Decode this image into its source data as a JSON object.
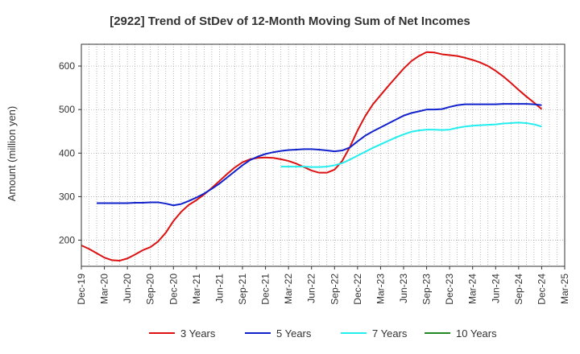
{
  "chart_data": {
    "type": "line",
    "title": "[2922]  Trend of StDev of 12-Month Moving Sum of Net Incomes",
    "ylabel": "Amount (million yen)",
    "xlabel": "",
    "ylim": [
      140,
      650
    ],
    "yticks": [
      200,
      300,
      400,
      500,
      600
    ],
    "x_tick_labels": [
      "Dec-19",
      "Mar-20",
      "Jun-20",
      "Sep-20",
      "Dec-20",
      "Mar-21",
      "Jun-21",
      "Sep-21",
      "Dec-21",
      "Mar-22",
      "Jun-22",
      "Sep-22",
      "Dec-22",
      "Mar-23",
      "Jun-23",
      "Sep-23",
      "Dec-23",
      "Mar-24",
      "Jun-24",
      "Sep-24",
      "Dec-24",
      "Mar-25"
    ],
    "grid": true,
    "legend_position": "bottom",
    "colors": {
      "grid": "#999999",
      "axis": "#333333"
    },
    "series": [
      {
        "name": "3 Years",
        "color": "#dd1111",
        "values": [
          {
            "x": "Dec-19",
            "y": 188
          },
          {
            "x": "Jan-20",
            "y": 180
          },
          {
            "x": "Feb-20",
            "y": 170
          },
          {
            "x": "Mar-20",
            "y": 160
          },
          {
            "x": "Apr-20",
            "y": 154
          },
          {
            "x": "May-20",
            "y": 153
          },
          {
            "x": "Jun-20",
            "y": 158
          },
          {
            "x": "Jul-20",
            "y": 167
          },
          {
            "x": "Aug-20",
            "y": 177
          },
          {
            "x": "Sep-20",
            "y": 184
          },
          {
            "x": "Oct-20",
            "y": 197
          },
          {
            "x": "Nov-20",
            "y": 217
          },
          {
            "x": "Dec-20",
            "y": 244
          },
          {
            "x": "Jan-21",
            "y": 265
          },
          {
            "x": "Feb-21",
            "y": 281
          },
          {
            "x": "Mar-21",
            "y": 292
          },
          {
            "x": "Apr-21",
            "y": 305
          },
          {
            "x": "May-21",
            "y": 320
          },
          {
            "x": "Jun-21",
            "y": 336
          },
          {
            "x": "Jul-21",
            "y": 352
          },
          {
            "x": "Aug-21",
            "y": 367
          },
          {
            "x": "Sep-21",
            "y": 379
          },
          {
            "x": "Oct-21",
            "y": 386
          },
          {
            "x": "Nov-21",
            "y": 389
          },
          {
            "x": "Dec-21",
            "y": 390
          },
          {
            "x": "Jan-22",
            "y": 389
          },
          {
            "x": "Feb-22",
            "y": 386
          },
          {
            "x": "Mar-22",
            "y": 382
          },
          {
            "x": "Apr-22",
            "y": 376
          },
          {
            "x": "May-22",
            "y": 368
          },
          {
            "x": "Jun-22",
            "y": 360
          },
          {
            "x": "Jul-22",
            "y": 355
          },
          {
            "x": "Aug-22",
            "y": 355
          },
          {
            "x": "Sep-22",
            "y": 362
          },
          {
            "x": "Oct-22",
            "y": 382
          },
          {
            "x": "Nov-22",
            "y": 414
          },
          {
            "x": "Dec-22",
            "y": 452
          },
          {
            "x": "Jan-23",
            "y": 485
          },
          {
            "x": "Feb-23",
            "y": 512
          },
          {
            "x": "Mar-23",
            "y": 533
          },
          {
            "x": "Apr-23",
            "y": 554
          },
          {
            "x": "May-23",
            "y": 574
          },
          {
            "x": "Jun-23",
            "y": 594
          },
          {
            "x": "Jul-23",
            "y": 611
          },
          {
            "x": "Aug-23",
            "y": 623
          },
          {
            "x": "Sep-23",
            "y": 632
          },
          {
            "x": "Oct-23",
            "y": 631
          },
          {
            "x": "Nov-23",
            "y": 627
          },
          {
            "x": "Dec-23",
            "y": 625
          },
          {
            "x": "Jan-24",
            "y": 623
          },
          {
            "x": "Feb-24",
            "y": 619
          },
          {
            "x": "Mar-24",
            "y": 614
          },
          {
            "x": "Apr-24",
            "y": 608
          },
          {
            "x": "May-24",
            "y": 600
          },
          {
            "x": "Jun-24",
            "y": 589
          },
          {
            "x": "Jul-24",
            "y": 576
          },
          {
            "x": "Aug-24",
            "y": 561
          },
          {
            "x": "Sep-24",
            "y": 545
          },
          {
            "x": "Oct-24",
            "y": 530
          },
          {
            "x": "Nov-24",
            "y": 516
          },
          {
            "x": "Dec-24",
            "y": 501
          }
        ]
      },
      {
        "name": "5 Years",
        "color": "#1122cc",
        "values": [
          {
            "x": "Feb-20",
            "y": 285
          },
          {
            "x": "Mar-20",
            "y": 285
          },
          {
            "x": "Apr-20",
            "y": 285
          },
          {
            "x": "May-20",
            "y": 285
          },
          {
            "x": "Jun-20",
            "y": 285
          },
          {
            "x": "Jul-20",
            "y": 286
          },
          {
            "x": "Aug-20",
            "y": 286
          },
          {
            "x": "Sep-20",
            "y": 287
          },
          {
            "x": "Oct-20",
            "y": 287
          },
          {
            "x": "Nov-20",
            "y": 284
          },
          {
            "x": "Dec-20",
            "y": 280
          },
          {
            "x": "Jan-21",
            "y": 283
          },
          {
            "x": "Feb-21",
            "y": 290
          },
          {
            "x": "Mar-21",
            "y": 298
          },
          {
            "x": "Apr-21",
            "y": 307
          },
          {
            "x": "May-21",
            "y": 318
          },
          {
            "x": "Jun-21",
            "y": 330
          },
          {
            "x": "Jul-21",
            "y": 344
          },
          {
            "x": "Aug-21",
            "y": 358
          },
          {
            "x": "Sep-21",
            "y": 372
          },
          {
            "x": "Oct-21",
            "y": 384
          },
          {
            "x": "Nov-21",
            "y": 392
          },
          {
            "x": "Dec-21",
            "y": 398
          },
          {
            "x": "Jan-22",
            "y": 402
          },
          {
            "x": "Feb-22",
            "y": 405
          },
          {
            "x": "Mar-22",
            "y": 407
          },
          {
            "x": "Apr-22",
            "y": 408
          },
          {
            "x": "May-22",
            "y": 409
          },
          {
            "x": "Jun-22",
            "y": 409
          },
          {
            "x": "Jul-22",
            "y": 408
          },
          {
            "x": "Aug-22",
            "y": 406
          },
          {
            "x": "Sep-22",
            "y": 404
          },
          {
            "x": "Oct-22",
            "y": 406
          },
          {
            "x": "Nov-22",
            "y": 413
          },
          {
            "x": "Dec-22",
            "y": 427
          },
          {
            "x": "Jan-23",
            "y": 440
          },
          {
            "x": "Feb-23",
            "y": 450
          },
          {
            "x": "Mar-23",
            "y": 459
          },
          {
            "x": "Apr-23",
            "y": 468
          },
          {
            "x": "May-23",
            "y": 477
          },
          {
            "x": "Jun-23",
            "y": 486
          },
          {
            "x": "Jul-23",
            "y": 492
          },
          {
            "x": "Aug-23",
            "y": 496
          },
          {
            "x": "Sep-23",
            "y": 500
          },
          {
            "x": "Oct-23",
            "y": 500
          },
          {
            "x": "Nov-23",
            "y": 501
          },
          {
            "x": "Dec-23",
            "y": 506
          },
          {
            "x": "Jan-24",
            "y": 510
          },
          {
            "x": "Feb-24",
            "y": 512
          },
          {
            "x": "Mar-24",
            "y": 512
          },
          {
            "x": "Apr-24",
            "y": 512
          },
          {
            "x": "May-24",
            "y": 512
          },
          {
            "x": "Jun-24",
            "y": 512
          },
          {
            "x": "Jul-24",
            "y": 513
          },
          {
            "x": "Aug-24",
            "y": 513
          },
          {
            "x": "Sep-24",
            "y": 513
          },
          {
            "x": "Oct-24",
            "y": 513
          },
          {
            "x": "Nov-24",
            "y": 512
          },
          {
            "x": "Dec-24",
            "y": 510
          }
        ]
      },
      {
        "name": "7 Years",
        "color": "#22eeee",
        "values": [
          {
            "x": "Feb-22",
            "y": 369
          },
          {
            "x": "Mar-22",
            "y": 369
          },
          {
            "x": "Apr-22",
            "y": 369
          },
          {
            "x": "May-22",
            "y": 369
          },
          {
            "x": "Jun-22",
            "y": 368
          },
          {
            "x": "Jul-22",
            "y": 368
          },
          {
            "x": "Aug-22",
            "y": 369
          },
          {
            "x": "Sep-22",
            "y": 372
          },
          {
            "x": "Oct-22",
            "y": 377
          },
          {
            "x": "Nov-22",
            "y": 385
          },
          {
            "x": "Dec-22",
            "y": 394
          },
          {
            "x": "Jan-23",
            "y": 403
          },
          {
            "x": "Feb-23",
            "y": 412
          },
          {
            "x": "Mar-23",
            "y": 420
          },
          {
            "x": "Apr-23",
            "y": 428
          },
          {
            "x": "May-23",
            "y": 436
          },
          {
            "x": "Jun-23",
            "y": 443
          },
          {
            "x": "Jul-23",
            "y": 449
          },
          {
            "x": "Aug-23",
            "y": 452
          },
          {
            "x": "Sep-23",
            "y": 454
          },
          {
            "x": "Oct-23",
            "y": 454
          },
          {
            "x": "Nov-23",
            "y": 453
          },
          {
            "x": "Dec-23",
            "y": 454
          },
          {
            "x": "Jan-24",
            "y": 458
          },
          {
            "x": "Feb-24",
            "y": 461
          },
          {
            "x": "Mar-24",
            "y": 463
          },
          {
            "x": "Apr-24",
            "y": 464
          },
          {
            "x": "May-24",
            "y": 465
          },
          {
            "x": "Jun-24",
            "y": 466
          },
          {
            "x": "Jul-24",
            "y": 468
          },
          {
            "x": "Aug-24",
            "y": 469
          },
          {
            "x": "Sep-24",
            "y": 470
          },
          {
            "x": "Oct-24",
            "y": 469
          },
          {
            "x": "Nov-24",
            "y": 466
          },
          {
            "x": "Dec-24",
            "y": 461
          }
        ]
      },
      {
        "name": "10 Years",
        "color": "#228822",
        "values": []
      }
    ]
  }
}
